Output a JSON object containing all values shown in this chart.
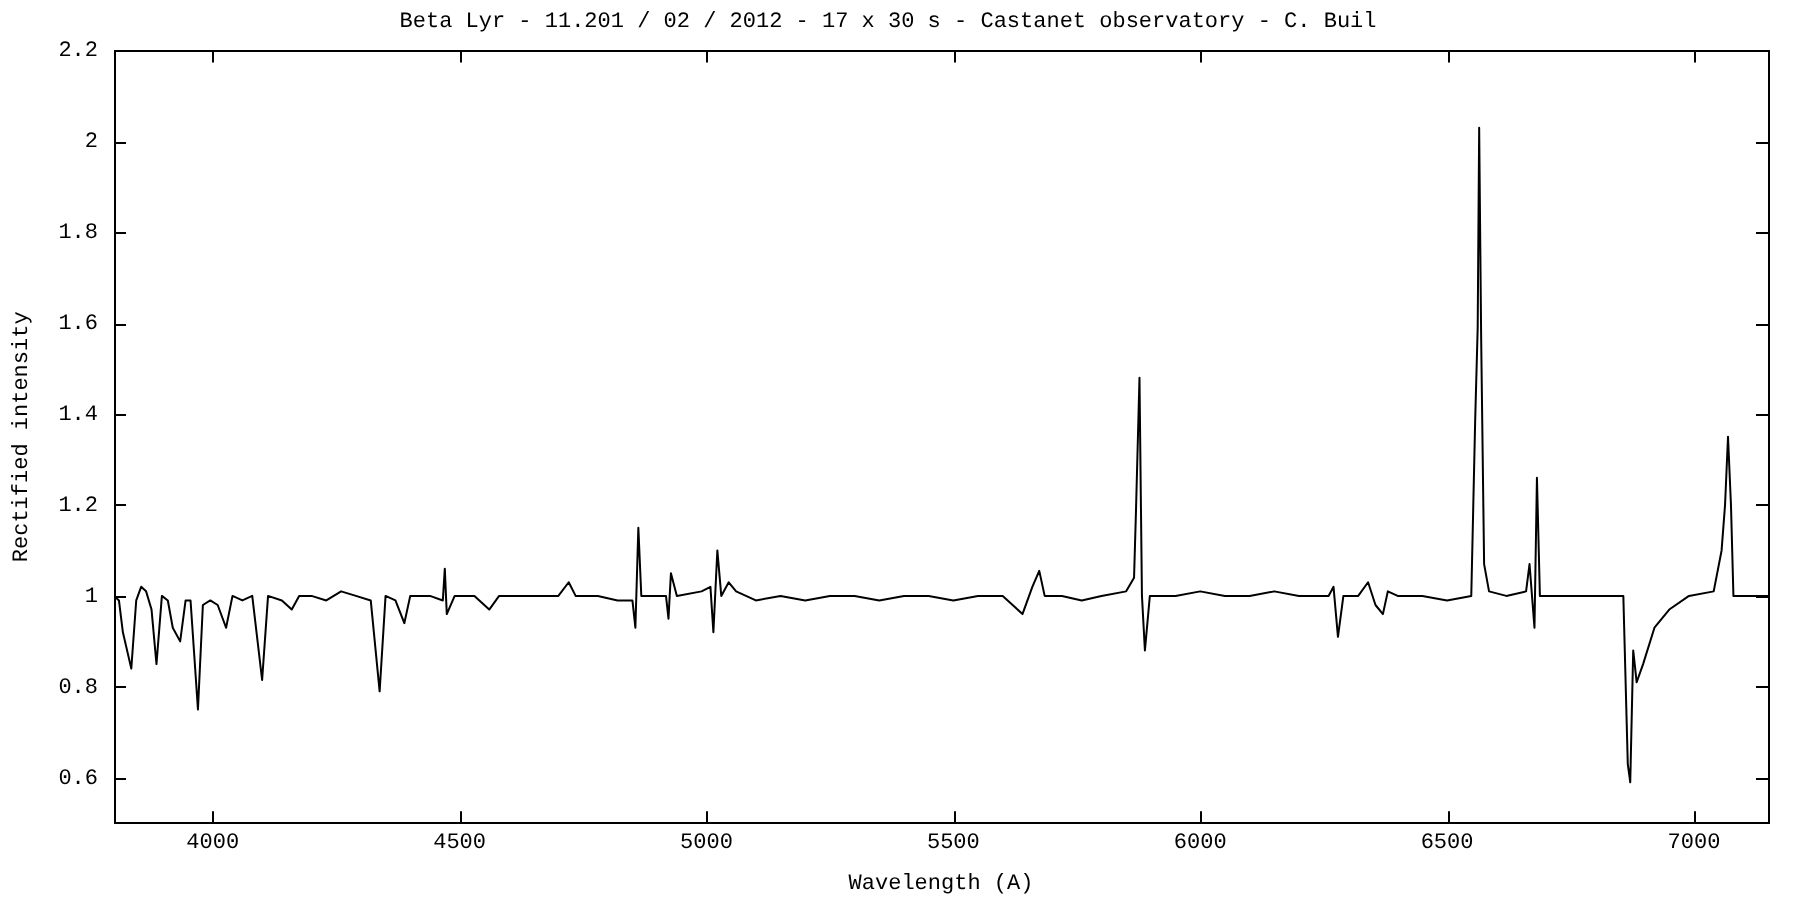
{
  "chart_data": {
    "type": "line",
    "title": "Beta Lyr - 11.201 / 02 / 2012 - 17 x 30 s - Castanet observatory - C. Buil",
    "xlabel": "Wavelength (A)",
    "ylabel": "Rectified intensity",
    "xlim": [
      3800,
      7150
    ],
    "xticks": [
      4000,
      4500,
      5000,
      5500,
      6000,
      6500,
      7000
    ],
    "ylim": [
      0.5,
      2.2
    ],
    "yticks": [
      0.6,
      0.8,
      1,
      1.2,
      1.4,
      1.6,
      1.8,
      2,
      2.2
    ],
    "grid": false,
    "legend": false,
    "marker": "none",
    "line_style": "solid",
    "series": [
      {
        "color": "#000000",
        "x": [
          3800,
          3810,
          3818,
          3835,
          3845,
          3855,
          3865,
          3876,
          3886,
          3897,
          3909,
          3919,
          3934,
          3945,
          3955,
          3970,
          3980,
          3995,
          4010,
          4027,
          4040,
          4060,
          4080,
          4100,
          4112,
          4140,
          4160,
          4175,
          4200,
          4230,
          4260,
          4290,
          4320,
          4338,
          4350,
          4370,
          4388,
          4400,
          4440,
          4466,
          4470,
          4474,
          4490,
          4530,
          4560,
          4580,
          4620,
          4660,
          4700,
          4721,
          4735,
          4780,
          4820,
          4850,
          4856,
          4862,
          4868,
          4900,
          4918,
          4923,
          4928,
          4940,
          4990,
          5008,
          5014,
          5022,
          5030,
          5045,
          5060,
          5100,
          5150,
          5200,
          5250,
          5300,
          5350,
          5400,
          5450,
          5500,
          5550,
          5600,
          5640,
          5660,
          5674,
          5685,
          5720,
          5760,
          5800,
          5850,
          5866,
          5870,
          5877,
          5882,
          5888,
          5898,
          5950,
          6000,
          6050,
          6100,
          6150,
          6200,
          6260,
          6270,
          6279,
          6290,
          6320,
          6340,
          6355,
          6370,
          6380,
          6400,
          6450,
          6500,
          6549,
          6557,
          6562,
          6565,
          6569,
          6575,
          6585,
          6620,
          6660,
          6667,
          6677,
          6682,
          6688,
          6720,
          6800,
          6857,
          6866,
          6871,
          6877,
          6884,
          6897,
          6920,
          6950,
          6990,
          7040,
          7056,
          7063,
          7069,
          7075,
          7080,
          7100,
          7150
        ],
        "values": [
          1.0,
          0.99,
          0.92,
          0.84,
          0.99,
          1.02,
          1.01,
          0.97,
          0.85,
          1.0,
          0.99,
          0.93,
          0.9,
          0.99,
          0.99,
          0.75,
          0.98,
          0.99,
          0.98,
          0.93,
          1.0,
          0.99,
          1.0,
          0.815,
          1.0,
          0.99,
          0.97,
          1.0,
          1.0,
          0.99,
          1.01,
          1.0,
          0.99,
          0.79,
          1.0,
          0.99,
          0.94,
          1.0,
          1.0,
          0.99,
          1.06,
          0.96,
          1.0,
          1.0,
          0.97,
          1.0,
          1.0,
          1.0,
          1.0,
          1.03,
          1.0,
          1.0,
          0.99,
          0.99,
          0.93,
          1.15,
          1.0,
          1.0,
          1.0,
          0.95,
          1.05,
          1.0,
          1.01,
          1.02,
          0.92,
          1.1,
          1.0,
          1.03,
          1.01,
          0.99,
          1.0,
          0.99,
          1.0,
          1.0,
          0.99,
          1.0,
          1.0,
          0.99,
          1.0,
          1.0,
          0.96,
          1.02,
          1.055,
          1.0,
          1.0,
          0.99,
          1.0,
          1.01,
          1.04,
          1.19,
          1.48,
          1.0,
          0.88,
          1.0,
          1.0,
          1.01,
          1.0,
          1.0,
          1.01,
          1.0,
          1.0,
          1.02,
          0.91,
          1.0,
          1.0,
          1.03,
          0.98,
          0.96,
          1.01,
          1.0,
          1.0,
          0.99,
          1.0,
          1.39,
          1.59,
          2.03,
          1.57,
          1.07,
          1.01,
          1.0,
          1.01,
          1.07,
          0.93,
          1.26,
          1.0,
          1.0,
          1.0,
          1.0,
          0.63,
          0.59,
          0.88,
          0.81,
          0.85,
          0.93,
          0.97,
          1.0,
          1.01,
          1.1,
          1.2,
          1.35,
          1.2,
          1.0,
          1.0,
          1.0
        ]
      }
    ]
  }
}
